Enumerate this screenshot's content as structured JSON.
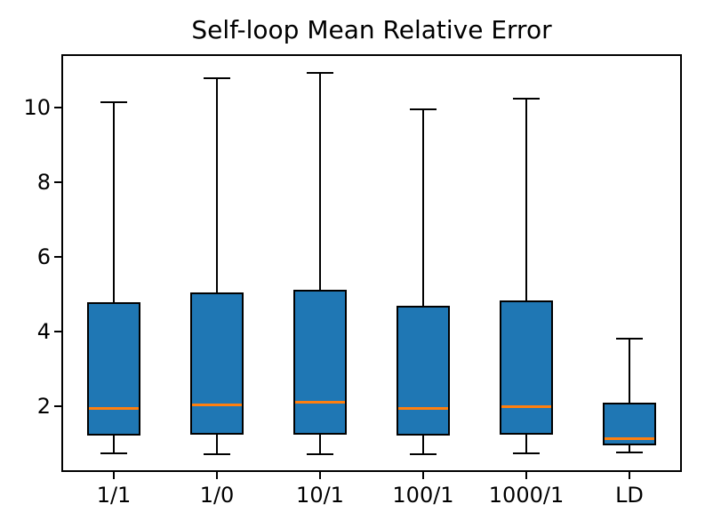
{
  "chart_data": {
    "type": "boxplot",
    "title": "Self-loop Mean Relative Error",
    "xlabel": "",
    "ylabel": "",
    "categories": [
      "1/1",
      "1/0",
      "10/1",
      "100/1",
      "1000/1",
      "LD"
    ],
    "boxes": [
      {
        "label": "1/1",
        "whisker_low": 0.75,
        "q1": 1.22,
        "median": 1.95,
        "q3": 4.79,
        "whisker_high": 10.15
      },
      {
        "label": "1/0",
        "whisker_low": 0.72,
        "q1": 1.24,
        "median": 2.05,
        "q3": 5.05,
        "whisker_high": 10.8
      },
      {
        "label": "10/1",
        "whisker_low": 0.73,
        "q1": 1.24,
        "median": 2.11,
        "q3": 5.12,
        "whisker_high": 10.94
      },
      {
        "label": "100/1",
        "whisker_low": 0.73,
        "q1": 1.22,
        "median": 1.96,
        "q3": 4.69,
        "whisker_high": 9.95
      },
      {
        "label": "1000/1",
        "whisker_low": 0.75,
        "q1": 1.24,
        "median": 2.0,
        "q3": 4.85,
        "whisker_high": 10.25
      },
      {
        "label": "LD",
        "whisker_low": 0.76,
        "q1": 0.97,
        "median": 1.13,
        "q3": 2.1,
        "whisker_high": 3.81
      }
    ],
    "yticks": [
      2,
      4,
      6,
      8,
      10
    ],
    "ylim": [
      0.27,
      11.41
    ],
    "grid": false,
    "legend": "none",
    "colors": {
      "box_fill": "#1f77b4",
      "median": "#ff7f0e",
      "line": "#000000",
      "background": "#ffffff"
    }
  }
}
